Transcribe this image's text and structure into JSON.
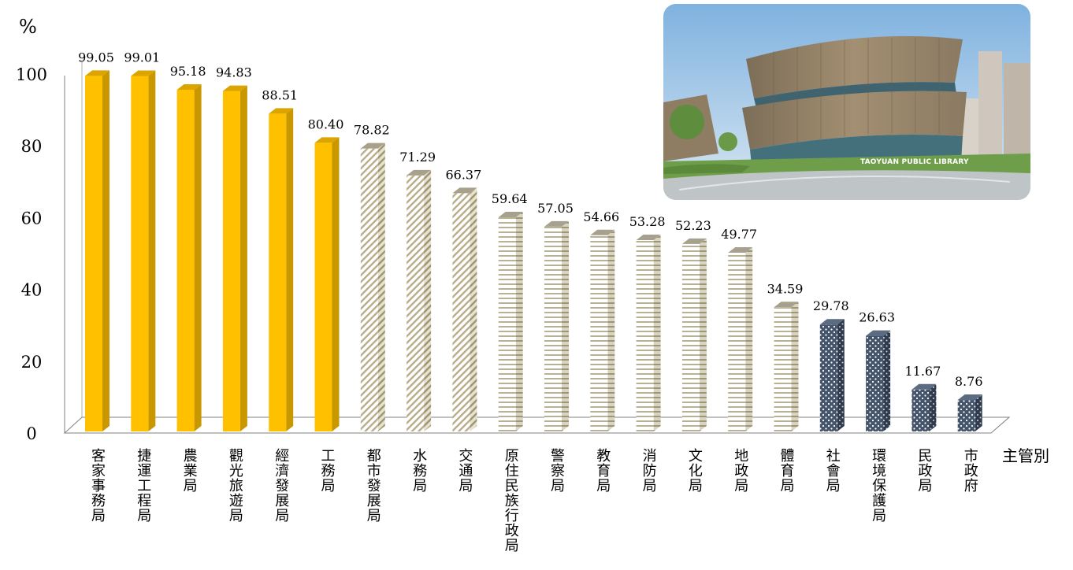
{
  "chart_data": {
    "type": "bar",
    "y_unit_label": "%",
    "x_axis_label": "主管別",
    "ylim": [
      0,
      100
    ],
    "yticks": [
      "0",
      "20",
      "40",
      "60",
      "80",
      "100"
    ],
    "grid": false,
    "legend": "none",
    "categories": [
      "客家事務局",
      "捷運工程局",
      "農業局",
      "觀光旅遊局",
      "經濟發展局",
      "工務局",
      "都市發展局",
      "水務局",
      "交通局",
      "原住民族行政局",
      "警察局",
      "教育局",
      "消防局",
      "文化局",
      "地政局",
      "體育局",
      "社會局",
      "環境保護局",
      "民政局",
      "市政府"
    ],
    "values": [
      99.05,
      99.01,
      95.18,
      94.83,
      88.51,
      80.4,
      78.82,
      71.29,
      66.37,
      59.64,
      57.05,
      54.66,
      53.28,
      52.23,
      49.77,
      34.59,
      29.78,
      26.63,
      11.67,
      8.76
    ],
    "value_labels": [
      "99.05",
      "99.01",
      "95.18",
      "94.83",
      "88.51",
      "80.40",
      "78.82",
      "71.29",
      "66.37",
      "59.64",
      "57.05",
      "54.66",
      "53.28",
      "52.23",
      "49.77",
      "34.59",
      "29.78",
      "26.63",
      "11.67",
      "8.76"
    ],
    "bar_styles": [
      "solid",
      "solid",
      "solid",
      "solid",
      "solid",
      "solid",
      "diagonal",
      "diagonal",
      "diagonal",
      "horizontal",
      "horizontal",
      "horizontal",
      "horizontal",
      "horizontal",
      "horizontal",
      "horizontal",
      "dots",
      "dots",
      "dots",
      "dots"
    ],
    "colors": {
      "solid_front": "#FFC000",
      "solid_side": "#C99700",
      "solid_top": "#DBA400",
      "pattern_bg": "#FFFFFF",
      "diagonal_line": "#B7AD8A",
      "horizontal_line": "#B8B195",
      "pattern_side": "#C9C3A8",
      "dots_bg": "#44546A",
      "dots_dot": "#FFFFFF",
      "dots_side": "#2F3B4C",
      "axis": "#808080"
    }
  },
  "photo": {
    "caption": "TAOYUAN PUBLIC LIBRARY",
    "sky": "#9BC3E6",
    "building": "#8C7B63",
    "glass": "#4A6F7A",
    "lawn": "#6E9E4A",
    "pavement": "#BFC4C7"
  }
}
